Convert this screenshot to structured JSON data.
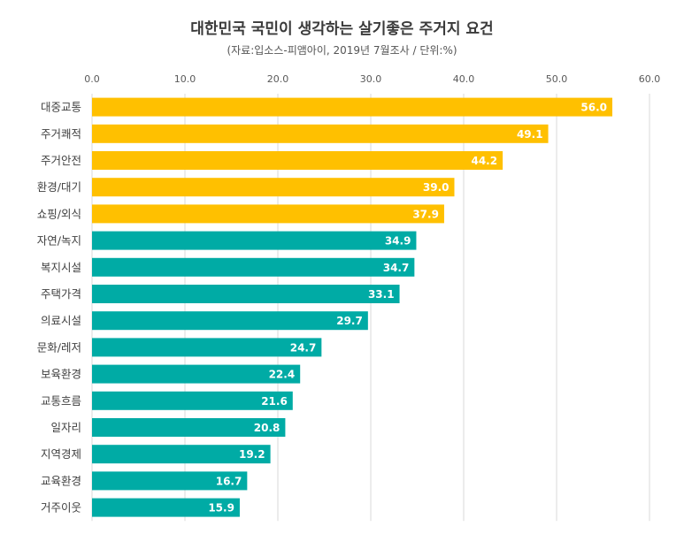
{
  "chart_data": {
    "type": "bar",
    "orientation": "horizontal",
    "title": "대한민국 국민이 생각하는 살기좋은 주거지 요건",
    "subtitle": "(자료:입소스-피앰아이, 2019년 7월조사 / 단위:%)",
    "xlabel": "",
    "ylabel": "",
    "xlim": [
      0,
      60
    ],
    "ticks": [
      "0.0",
      "10.0",
      "20.0",
      "30.0",
      "40.0",
      "50.0",
      "60.0"
    ],
    "tick_values": [
      0,
      10,
      20,
      30,
      40,
      50,
      60
    ],
    "grid": true,
    "categories": [
      "대중교통",
      "주거쾌적",
      "주거안전",
      "환경/대기",
      "쇼핑/외식",
      "자연/녹지",
      "복지시설",
      "주택가격",
      "의료시설",
      "문화/레저",
      "보육환경",
      "교통흐름",
      "일자리",
      "지역경제",
      "교육환경",
      "거주이웃"
    ],
    "values": [
      56.0,
      49.1,
      44.2,
      39.0,
      37.9,
      34.9,
      34.7,
      33.1,
      29.7,
      24.7,
      22.4,
      21.6,
      20.8,
      19.2,
      16.7,
      15.9
    ],
    "labels": [
      "56.0",
      "49.1",
      "44.2",
      "39.0",
      "37.9",
      "34.9",
      "34.7",
      "33.1",
      "29.7",
      "24.7",
      "22.4",
      "21.6",
      "20.8",
      "19.2",
      "16.7",
      "15.9"
    ],
    "highlight_count": 5,
    "colors": {
      "highlight": "#FFC000",
      "normal": "#00ABA5",
      "grid": "#D9D9D9"
    }
  }
}
